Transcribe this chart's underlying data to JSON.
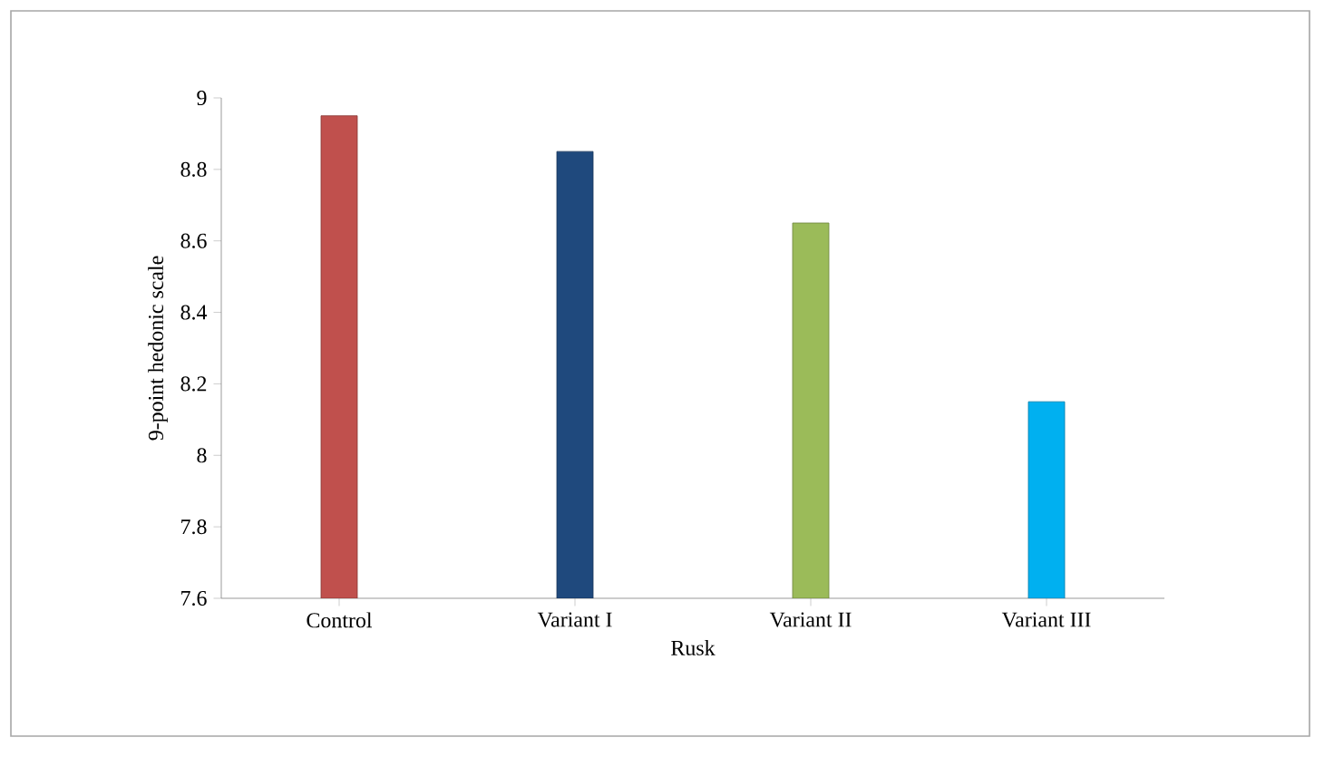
{
  "chart_data": {
    "type": "bar",
    "xlabel": "Rusk",
    "ylabel": "9-point hedonic scale",
    "categories": [
      "Control",
      "Variant I",
      "Variant II",
      "Variant III"
    ],
    "values": [
      8.95,
      8.85,
      8.65,
      8.15
    ],
    "colors": [
      "#c0504d",
      "#1f497d",
      "#9bbb59",
      "#00b0f0"
    ],
    "ylim": [
      7.6,
      9
    ],
    "yticks": [
      7.6,
      7.8,
      8,
      8.2,
      8.4,
      8.6,
      8.8,
      9
    ],
    "grid": false
  }
}
